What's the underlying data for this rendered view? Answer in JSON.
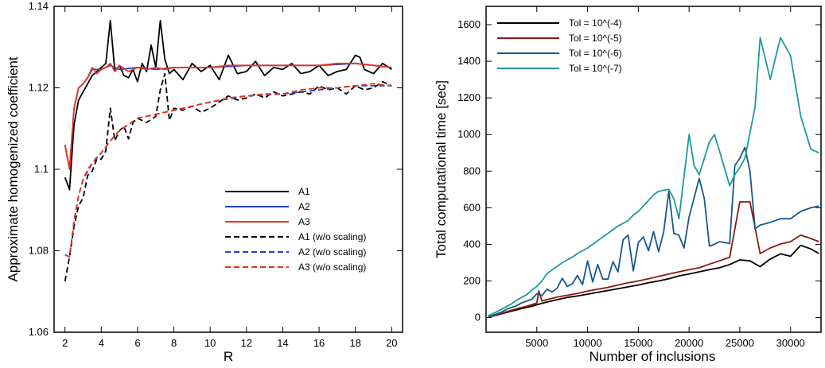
{
  "chart_data": [
    {
      "type": "line",
      "xlabel": "R",
      "ylabel": "Approximate homogenized coefficient",
      "xlim": [
        1.4,
        20.6
      ],
      "ylim": [
        1.06,
        1.14
      ],
      "xticks": [
        2,
        4,
        6,
        8,
        10,
        12,
        14,
        16,
        18,
        20
      ],
      "xtick_labels": [
        "2",
        "4",
        "6",
        "8",
        "10",
        "12",
        "14",
        "16",
        "18",
        "20"
      ],
      "yticks": [
        1.06,
        1.08,
        1.1,
        1.12,
        1.14
      ],
      "ytick_labels": [
        "1.06",
        "1.08",
        "1.1",
        "1.12",
        "1.14"
      ],
      "grid": false,
      "legend_position": "lower-right",
      "series": [
        {
          "name": "A1",
          "color": "#000000",
          "dash": "solid",
          "x": [
            2.0,
            2.25,
            2.5,
            2.75,
            3.0,
            3.25,
            3.5,
            3.75,
            4.0,
            4.25,
            4.5,
            4.75,
            5.0,
            5.25,
            5.5,
            5.75,
            6.0,
            6.25,
            6.5,
            6.75,
            7.0,
            7.25,
            7.5,
            7.75,
            8.0,
            8.5,
            9.0,
            9.5,
            10.0,
            10.5,
            11.0,
            11.5,
            12.0,
            12.5,
            13.0,
            13.5,
            14.0,
            14.5,
            15.0,
            15.5,
            16.0,
            16.5,
            17.0,
            17.5,
            18.0,
            18.25,
            18.5,
            19.0,
            19.5,
            20.0
          ],
          "y": [
            1.098,
            1.095,
            1.111,
            1.117,
            1.119,
            1.121,
            1.123,
            1.124,
            1.125,
            1.126,
            1.1365,
            1.124,
            1.1255,
            1.123,
            1.1225,
            1.1245,
            1.1215,
            1.126,
            1.124,
            1.1305,
            1.125,
            1.1365,
            1.127,
            1.1235,
            1.1245,
            1.122,
            1.126,
            1.124,
            1.1255,
            1.122,
            1.128,
            1.1235,
            1.124,
            1.1265,
            1.123,
            1.125,
            1.1245,
            1.126,
            1.1235,
            1.124,
            1.1255,
            1.123,
            1.124,
            1.1245,
            1.128,
            1.1275,
            1.1245,
            1.1235,
            1.126,
            1.1245
          ]
        },
        {
          "name": "A2",
          "color": "#1f3fd6",
          "dash": "solid",
          "x": [
            2.0,
            2.25,
            2.5,
            2.75,
            3.0,
            3.25,
            3.5,
            4.0,
            4.5,
            5.0,
            6.0,
            7.0,
            8.0,
            10.0,
            12.0,
            14.0,
            16.0,
            18.0,
            20.0
          ],
          "y": [
            1.106,
            1.1,
            1.115,
            1.12,
            1.121,
            1.1225,
            1.1245,
            1.1245,
            1.1255,
            1.1245,
            1.125,
            1.1245,
            1.125,
            1.125,
            1.1255,
            1.1255,
            1.1255,
            1.126,
            1.125
          ]
        },
        {
          "name": "A3",
          "color": "#e8341c",
          "dash": "solid",
          "x": [
            2.0,
            2.25,
            2.5,
            2.75,
            3.0,
            3.25,
            3.5,
            3.75,
            4.0,
            4.25,
            4.5,
            4.75,
            5.0,
            5.5,
            6.0,
            6.5,
            7.0,
            7.5,
            8.0,
            9.0,
            10.0,
            11.0,
            12.0,
            13.0,
            14.0,
            15.0,
            16.0,
            17.0,
            18.0,
            19.0,
            20.0
          ],
          "y": [
            1.106,
            1.1,
            1.115,
            1.12,
            1.121,
            1.1225,
            1.125,
            1.1235,
            1.1245,
            1.125,
            1.126,
            1.124,
            1.1255,
            1.124,
            1.125,
            1.1245,
            1.125,
            1.1245,
            1.125,
            1.125,
            1.125,
            1.1255,
            1.1255,
            1.1255,
            1.1255,
            1.1255,
            1.1255,
            1.126,
            1.126,
            1.1255,
            1.125
          ]
        },
        {
          "name": "A1 (w/o scaling)",
          "color": "#000000",
          "dash": "dashed",
          "x": [
            2.0,
            2.25,
            2.5,
            2.75,
            3.0,
            3.25,
            3.5,
            3.75,
            4.0,
            4.25,
            4.5,
            4.75,
            5.0,
            5.25,
            5.5,
            5.75,
            6.0,
            6.5,
            7.0,
            7.25,
            7.5,
            7.75,
            8.0,
            8.5,
            9.0,
            9.5,
            10.0,
            10.5,
            11.0,
            11.5,
            12.0,
            12.5,
            13.0,
            13.5,
            14.0,
            14.5,
            15.0,
            15.5,
            16.0,
            16.5,
            17.0,
            17.5,
            18.0,
            18.5,
            19.0,
            19.5,
            20.0
          ],
          "y": [
            1.0725,
            1.0785,
            1.086,
            1.091,
            1.093,
            1.0985,
            1.0995,
            1.1025,
            1.1025,
            1.1045,
            1.115,
            1.107,
            1.1095,
            1.1105,
            1.1075,
            1.1115,
            1.1125,
            1.1115,
            1.113,
            1.1195,
            1.1235,
            1.112,
            1.115,
            1.1145,
            1.1155,
            1.114,
            1.115,
            1.1165,
            1.118,
            1.117,
            1.1175,
            1.1185,
            1.1175,
            1.119,
            1.118,
            1.1185,
            1.119,
            1.1185,
            1.1205,
            1.1195,
            1.12,
            1.1185,
            1.1205,
            1.1195,
            1.12,
            1.1215,
            1.1205
          ]
        },
        {
          "name": "A2 (w/o scaling)",
          "color": "#1f3fd6",
          "dash": "dashed",
          "x": [
            2.0,
            2.25,
            2.5,
            2.75,
            3.0,
            3.5,
            4.0,
            4.5,
            5.0,
            6.0,
            7.0,
            8.0,
            10.0,
            12.0,
            14.0,
            16.0,
            18.0,
            20.0
          ],
          "y": [
            1.079,
            1.0785,
            1.087,
            1.0935,
            1.0975,
            1.1015,
            1.104,
            1.107,
            1.1095,
            1.1125,
            1.1135,
            1.1145,
            1.1165,
            1.118,
            1.1185,
            1.1195,
            1.1205,
            1.1205
          ]
        },
        {
          "name": "A3 (w/o scaling)",
          "color": "#e8341c",
          "dash": "dashed",
          "x": [
            2.0,
            2.25,
            2.5,
            2.75,
            3.0,
            3.25,
            3.5,
            3.75,
            4.0,
            4.5,
            5.0,
            5.5,
            6.0,
            6.5,
            7.0,
            7.5,
            8.0,
            9.0,
            10.0,
            11.0,
            12.0,
            13.0,
            14.0,
            15.0,
            16.0,
            17.0,
            18.0,
            19.0,
            20.0
          ],
          "y": [
            1.079,
            1.0785,
            1.0875,
            1.0935,
            1.0975,
            1.1,
            1.1015,
            1.103,
            1.104,
            1.107,
            1.1095,
            1.111,
            1.1125,
            1.113,
            1.1135,
            1.114,
            1.1145,
            1.1155,
            1.1165,
            1.1175,
            1.118,
            1.1185,
            1.1185,
            1.1195,
            1.12,
            1.12,
            1.1205,
            1.121,
            1.1205
          ]
        }
      ]
    },
    {
      "type": "line",
      "xlabel": "Number of inclusions",
      "ylabel": "Total computational time [sec]",
      "xlim": [
        0,
        33000
      ],
      "ylim": [
        -80,
        1700
      ],
      "xticks": [
        5000,
        10000,
        15000,
        20000,
        25000,
        30000
      ],
      "xtick_labels": [
        "5000",
        "10000",
        "15000",
        "20000",
        "25000",
        "30000"
      ],
      "yticks": [
        0,
        200,
        400,
        600,
        800,
        1000,
        1200,
        1400,
        1600
      ],
      "ytick_labels": [
        "0",
        "200",
        "400",
        "600",
        "800",
        "1000",
        "1200",
        "1400",
        "1600"
      ],
      "grid": false,
      "legend_position": "top-left",
      "series": [
        {
          "name": "Tol = 10^(-4)",
          "color": "#000000",
          "x": [
            200,
            800,
            1500,
            2000,
            2500,
            3000,
            3500,
            4000,
            4500,
            5000,
            5500,
            6000,
            7000,
            8000,
            9000,
            10000,
            11000,
            12000,
            13000,
            14000,
            15000,
            16000,
            17000,
            18000,
            19000,
            20000,
            21000,
            22000,
            23000,
            24000,
            25000,
            26000,
            27000,
            28000,
            29000,
            30000,
            31000,
            32000,
            32800
          ],
          "y": [
            5,
            10,
            20,
            28,
            35,
            42,
            50,
            55,
            62,
            70,
            78,
            85,
            98,
            110,
            118,
            128,
            138,
            148,
            158,
            168,
            178,
            190,
            200,
            212,
            228,
            238,
            250,
            262,
            272,
            290,
            315,
            310,
            278,
            320,
            348,
            335,
            395,
            375,
            350
          ]
        },
        {
          "name": "Tol = 10^(-5)",
          "color": "#8b1a0e",
          "x": [
            200,
            800,
            1500,
            2000,
            2500,
            3000,
            3500,
            4000,
            4500,
            5000,
            5200,
            5500,
            6000,
            7000,
            8000,
            9000,
            10000,
            11000,
            12000,
            13000,
            14000,
            15000,
            16000,
            17000,
            18000,
            19000,
            20000,
            21000,
            22000,
            23000,
            24000,
            25000,
            26000,
            27000,
            28000,
            29000,
            30000,
            31000,
            32000,
            32800
          ],
          "y": [
            5,
            12,
            22,
            32,
            40,
            48,
            55,
            62,
            70,
            80,
            145,
            90,
            98,
            112,
            122,
            132,
            145,
            155,
            165,
            178,
            190,
            200,
            212,
            225,
            238,
            250,
            262,
            272,
            292,
            310,
            330,
            632,
            632,
            350,
            380,
            402,
            415,
            450,
            432,
            415
          ]
        },
        {
          "name": "Tol = 10^(-6)",
          "color": "#16578e",
          "x": [
            200,
            800,
            1500,
            2000,
            2500,
            3000,
            3500,
            4000,
            4500,
            5000,
            5500,
            6000,
            6500,
            7000,
            7500,
            8000,
            8500,
            9000,
            9500,
            10000,
            10500,
            11000,
            11500,
            12000,
            12500,
            13000,
            13500,
            14000,
            14500,
            15000,
            15500,
            16000,
            16500,
            17000,
            17500,
            18000,
            18500,
            19000,
            19500,
            20000,
            21000,
            21500,
            22000,
            22500,
            23000,
            24000,
            24500,
            25000,
            25500,
            26000,
            26500,
            27000,
            28000,
            29000,
            30000,
            31000,
            32000,
            32800
          ],
          "y": [
            5,
            15,
            30,
            45,
            55,
            65,
            80,
            90,
            100,
            130,
            120,
            155,
            140,
            160,
            215,
            170,
            185,
            230,
            180,
            310,
            195,
            290,
            210,
            210,
            305,
            250,
            425,
            450,
            255,
            410,
            440,
            365,
            470,
            360,
            470,
            690,
            460,
            450,
            380,
            550,
            760,
            650,
            390,
            400,
            415,
            405,
            830,
            870,
            930,
            800,
            485,
            505,
            520,
            540,
            540,
            580,
            600,
            610
          ]
        },
        {
          "name": "Tol = 10^(-7)",
          "color": "#1c9a9a",
          "x": [
            200,
            800,
            1500,
            2000,
            2500,
            3000,
            3500,
            4000,
            4500,
            5000,
            5500,
            6000,
            6500,
            7000,
            7500,
            8000,
            8500,
            9000,
            9500,
            10000,
            10500,
            11000,
            11500,
            12000,
            12500,
            13000,
            14000,
            14500,
            15000,
            15500,
            16000,
            16500,
            17000,
            18000,
            18500,
            19000,
            20000,
            20500,
            21000,
            22000,
            22500,
            23000,
            24000,
            24500,
            25000,
            25500,
            26000,
            26500,
            27000,
            28000,
            29000,
            30000,
            31000,
            32000,
            32800
          ],
          "y": [
            10,
            25,
            45,
            60,
            75,
            95,
            110,
            125,
            150,
            170,
            200,
            240,
            260,
            280,
            300,
            315,
            330,
            350,
            365,
            380,
            400,
            420,
            440,
            460,
            480,
            500,
            530,
            560,
            580,
            610,
            640,
            670,
            690,
            700,
            650,
            540,
            1000,
            830,
            780,
            960,
            1000,
            910,
            720,
            780,
            820,
            870,
            1010,
            1150,
            1530,
            1300,
            1530,
            1430,
            1100,
            920,
            900
          ]
        }
      ]
    }
  ]
}
